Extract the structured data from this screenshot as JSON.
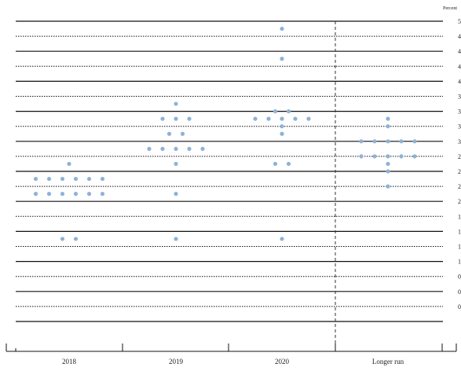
{
  "chart_data": {
    "type": "scatter",
    "unit_label": "Percent",
    "categories": [
      "2018",
      "2019",
      "2020",
      "Longer run"
    ],
    "ylim": [
      0,
      5
    ],
    "right_tick_labels": [
      "5",
      "4",
      "4",
      "4",
      "4",
      "3",
      "3",
      "3",
      "3",
      "2",
      "2",
      "2",
      "2",
      "1",
      "1",
      "1",
      "1",
      "0",
      "0",
      "0"
    ],
    "dot_color": "#8eb2d6",
    "points": {
      "2018": [
        {
          "y": 2.625,
          "count": 1
        },
        {
          "y": 2.375,
          "count": 6
        },
        {
          "y": 2.125,
          "count": 6
        },
        {
          "y": 1.375,
          "count": 2
        }
      ],
      "2019": [
        {
          "y": 3.625,
          "count": 1
        },
        {
          "y": 3.375,
          "count": 3
        },
        {
          "y": 3.125,
          "count": 2
        },
        {
          "y": 2.875,
          "count": 5
        },
        {
          "y": 2.625,
          "count": 1
        },
        {
          "y": 2.125,
          "count": 1
        },
        {
          "y": 1.375,
          "count": 1
        }
      ],
      "2020": [
        {
          "y": 4.875,
          "count": 1
        },
        {
          "y": 4.375,
          "count": 1
        },
        {
          "y": 3.5,
          "count": 2
        },
        {
          "y": 3.375,
          "count": 5
        },
        {
          "y": 3.25,
          "count": 1
        },
        {
          "y": 3.125,
          "count": 1
        },
        {
          "y": 2.625,
          "count": 2
        },
        {
          "y": 1.375,
          "count": 1
        }
      ],
      "Longer run": [
        {
          "y": 3.375,
          "count": 1
        },
        {
          "y": 3.25,
          "count": 1
        },
        {
          "y": 3.0,
          "count": 5
        },
        {
          "y": 2.75,
          "count": 5
        },
        {
          "y": 2.625,
          "count": 1
        },
        {
          "y": 2.5,
          "count": 1
        },
        {
          "y": 2.25,
          "count": 1
        }
      ]
    }
  }
}
